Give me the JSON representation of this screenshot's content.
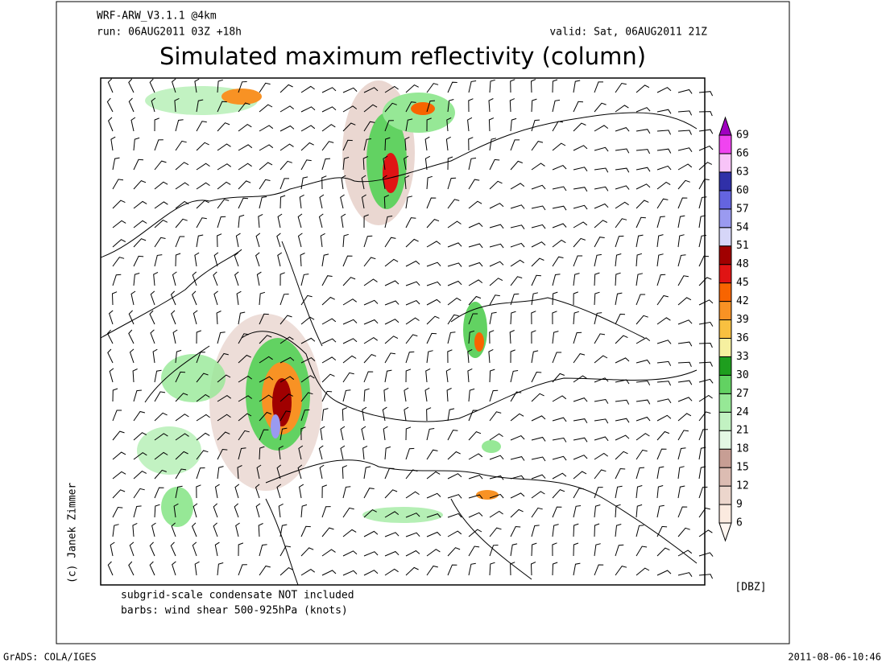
{
  "header": {
    "model": "WRF-ARW_V3.1.1 @4km",
    "run": "run: 06AUG2011 03Z +18h",
    "valid": "valid: Sat, 06AUG2011 21Z",
    "title": "Simulated maximum reflectivity (column)"
  },
  "colorbar": {
    "levels": [
      6,
      9,
      12,
      15,
      18,
      21,
      24,
      27,
      30,
      33,
      36,
      39,
      42,
      45,
      48,
      51,
      54,
      57,
      60,
      63,
      66,
      69
    ],
    "colors": [
      "#fbeadf",
      "#ecd6cc",
      "#dcbcb2",
      "#c79e94",
      "#e4f8e4",
      "#c2f2c2",
      "#96e896",
      "#62d262",
      "#1e9e1e",
      "#f6f0a0",
      "#f8c040",
      "#f89224",
      "#f86400",
      "#e01414",
      "#a00000",
      "#d6d6f8",
      "#9a9af0",
      "#6464e0",
      "#3030a8",
      "#f8c4f8",
      "#f044f0",
      "#a000c0"
    ],
    "below_color": "#fff6f0",
    "unit": "[DBZ]"
  },
  "notes": [
    "subgrid-scale condensate NOT included",
    "barbs: wind shear 500-925hPa (knots)"
  ],
  "credit": "(c) Janek Zimmer",
  "footer": {
    "left": "GrADS: COLA/IGES",
    "right": "2011-08-06-10:46"
  }
}
